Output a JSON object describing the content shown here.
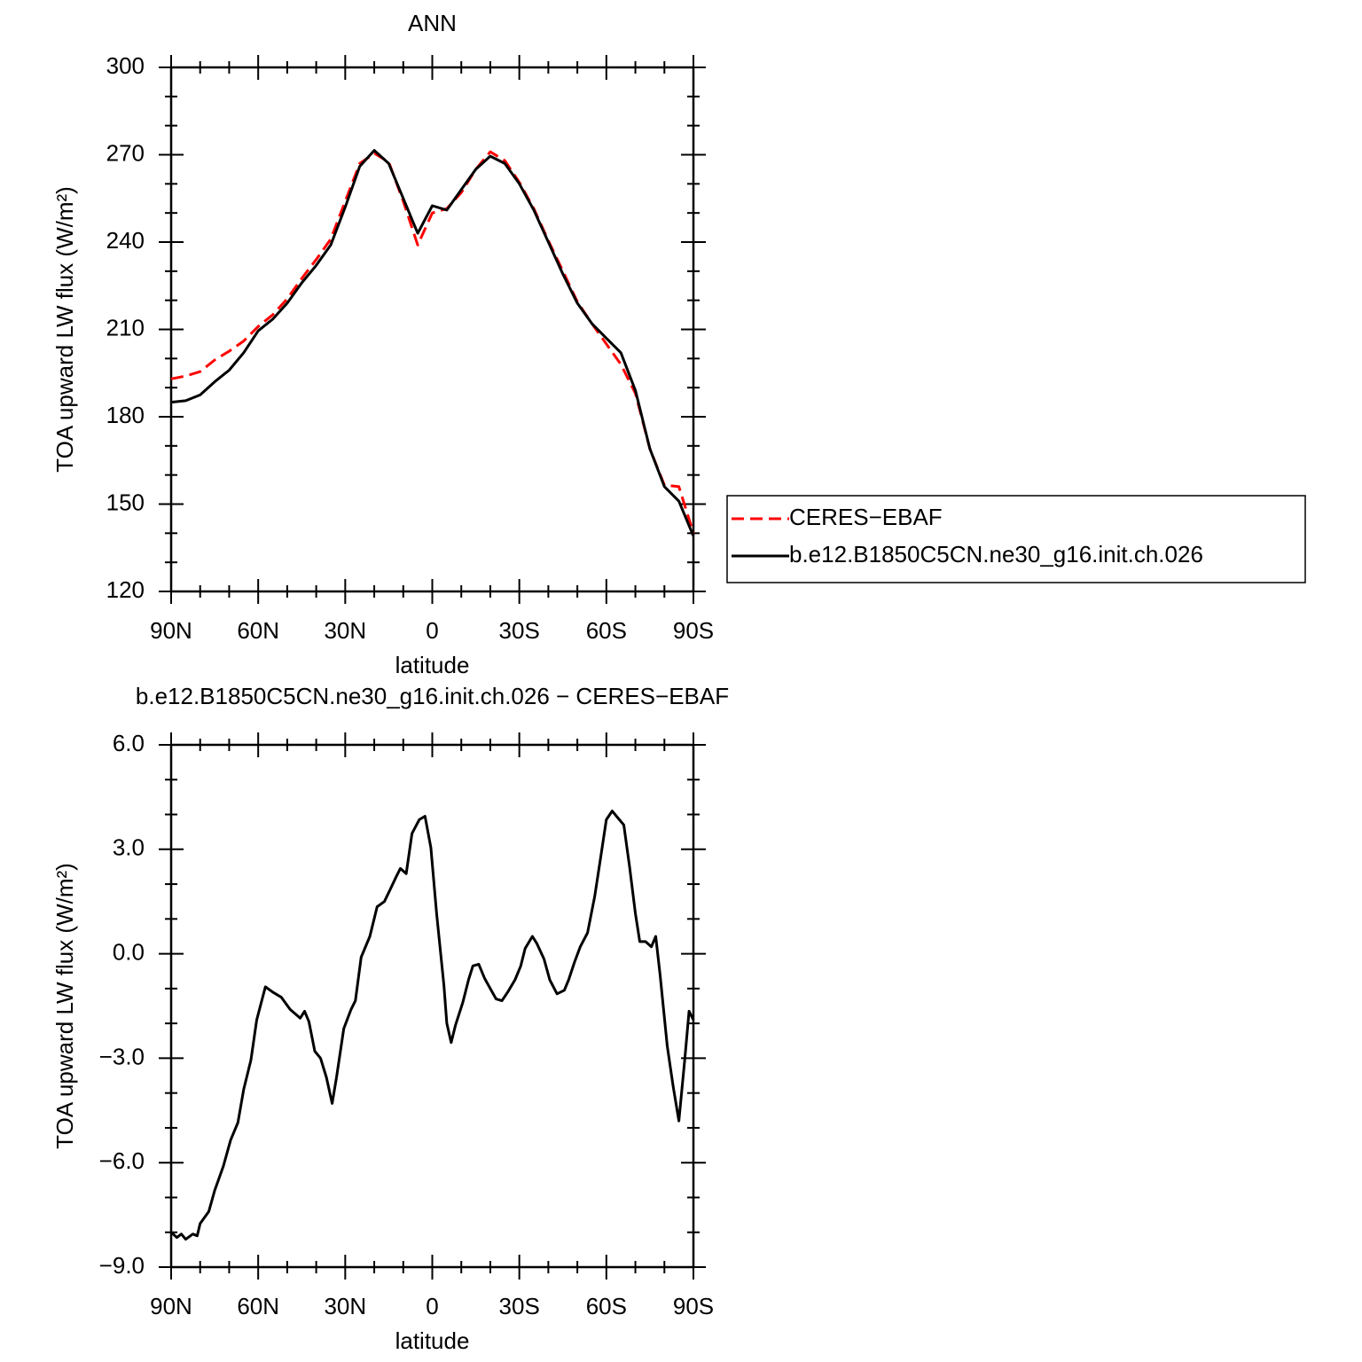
{
  "chart_data": [
    {
      "type": "line",
      "title": "ANN",
      "xlabel": "latitude",
      "ylabel": "TOA upward LW flux (W/m²)",
      "x": [
        90,
        85,
        80,
        75,
        70,
        65,
        60,
        55,
        50,
        45,
        40,
        35,
        30,
        25,
        20,
        15,
        10,
        5,
        0,
        -5,
        -10,
        -15,
        -20,
        -25,
        -30,
        -35,
        -40,
        -45,
        -50,
        -55,
        -60,
        -65,
        -70,
        -75,
        -80,
        -85,
        -90
      ],
      "series": [
        {
          "name": "CERES−EBAF",
          "color": "#ff0000",
          "dash": true,
          "values": [
            193,
            194,
            195.5,
            199.5,
            202.5,
            206,
            211,
            215,
            220.5,
            227.5,
            234,
            241,
            254,
            267,
            270.5,
            267.5,
            254,
            239,
            250,
            251.5,
            257,
            265,
            271,
            268,
            260.5,
            251.5,
            240.5,
            230,
            219.5,
            212,
            205,
            198,
            188,
            169,
            156.5,
            156,
            140
          ]
        },
        {
          "name": "b.e12.B1850C5CN.ne30_g16.init.ch.026",
          "color": "#000000",
          "dash": false,
          "values": [
            185,
            185.5,
            187.5,
            192,
            196,
            202,
            209.5,
            213.5,
            219,
            226,
            232,
            239,
            252,
            266,
            271.5,
            267,
            255,
            243,
            252.5,
            251,
            258,
            265,
            269.5,
            267,
            260,
            251,
            240,
            229,
            219,
            212,
            207,
            202,
            189,
            169,
            156,
            151,
            139
          ]
        }
      ],
      "xlim": [
        90,
        -90
      ],
      "xticks": [
        {
          "value": 90,
          "label": "90N"
        },
        {
          "value": 60,
          "label": "60N"
        },
        {
          "value": 30,
          "label": "30N"
        },
        0,
        {
          "value": -30,
          "label": "30S"
        },
        {
          "value": -60,
          "label": "60S"
        },
        {
          "value": -90,
          "label": "90S"
        }
      ],
      "ylim": [
        120,
        300
      ],
      "yticks": [
        120,
        150,
        180,
        210,
        240,
        270,
        300
      ],
      "legend": "right"
    },
    {
      "type": "line",
      "title": "b.e12.B1850C5CN.ne30_g16.init.ch.026 − CERES−EBAF",
      "xlabel": "latitude",
      "ylabel": "TOA upward LW flux (W/m²)",
      "x": [
        90,
        88,
        86.5,
        85,
        82.5,
        81,
        80,
        77,
        75,
        72,
        69.5,
        67,
        65,
        62.5,
        60.5,
        57.5,
        55,
        52,
        49,
        45.5,
        44,
        42.5,
        40.5,
        38.5,
        36.5,
        34.5,
        33,
        30.5,
        28,
        26.5,
        24.5,
        21.5,
        19,
        16.5,
        14.5,
        12.5,
        11,
        9,
        7,
        4.5,
        2.5,
        0.5,
        -1.5,
        -4,
        -5,
        -6.5,
        -8,
        -10.5,
        -12.5,
        -14,
        -16,
        -18,
        -20,
        -22,
        -24,
        -26,
        -28.5,
        -30.5,
        -32,
        -34.5,
        -36,
        -38.5,
        -40.5,
        -43,
        -45.5,
        -47,
        -49,
        -51,
        -53.5,
        -56,
        -58,
        -60,
        -62,
        -64,
        -66,
        -68,
        -70,
        -71.5,
        -73.5,
        -75.5,
        -77,
        -78.5,
        -81,
        -83,
        -85,
        -87,
        -88.5,
        -90
      ],
      "values": [
        -8.0,
        -8.15,
        -8.05,
        -8.2,
        -8.05,
        -8.1,
        -7.75,
        -7.4,
        -6.8,
        -6.1,
        -5.35,
        -4.85,
        -3.9,
        -3.05,
        -1.9,
        -0.95,
        -1.1,
        -1.25,
        -1.6,
        -1.85,
        -1.65,
        -1.95,
        -2.8,
        -3.0,
        -3.55,
        -4.3,
        -3.55,
        -2.15,
        -1.6,
        -1.35,
        -0.1,
        0.5,
        1.35,
        1.5,
        1.85,
        2.2,
        2.45,
        2.3,
        3.45,
        3.85,
        3.95,
        3.05,
        1.15,
        -0.9,
        -2.0,
        -2.55,
        -2.05,
        -1.4,
        -0.75,
        -0.35,
        -0.3,
        -0.7,
        -1.0,
        -1.3,
        -1.35,
        -1.1,
        -0.75,
        -0.35,
        0.15,
        0.5,
        0.3,
        -0.15,
        -0.75,
        -1.15,
        -1.05,
        -0.75,
        -0.25,
        0.2,
        0.6,
        1.65,
        2.75,
        3.85,
        4.1,
        3.9,
        3.7,
        2.5,
        1.15,
        0.35,
        0.35,
        0.2,
        0.5,
        -0.6,
        -2.65,
        -3.8,
        -4.8,
        -3.05,
        -1.65,
        -1.9
      ],
      "color": "#000000",
      "xlim": [
        90,
        -90
      ],
      "xticks": [
        {
          "value": 90,
          "label": "90N"
        },
        {
          "value": 60,
          "label": "60N"
        },
        {
          "value": 30,
          "label": "30N"
        },
        0,
        {
          "value": -30,
          "label": "30S"
        },
        {
          "value": -60,
          "label": "60S"
        },
        {
          "value": -90,
          "label": "90S"
        }
      ],
      "ylim": [
        -9,
        6
      ],
      "yticks": [
        {
          "value": -9,
          "label": "−9.0"
        },
        {
          "value": -6,
          "label": "−6.0"
        },
        {
          "value": -3,
          "label": "−3.0"
        },
        {
          "value": 0,
          "label": "0.0"
        },
        {
          "value": 3,
          "label": "3.0"
        },
        {
          "value": 6,
          "label": "6.0"
        }
      ]
    }
  ]
}
